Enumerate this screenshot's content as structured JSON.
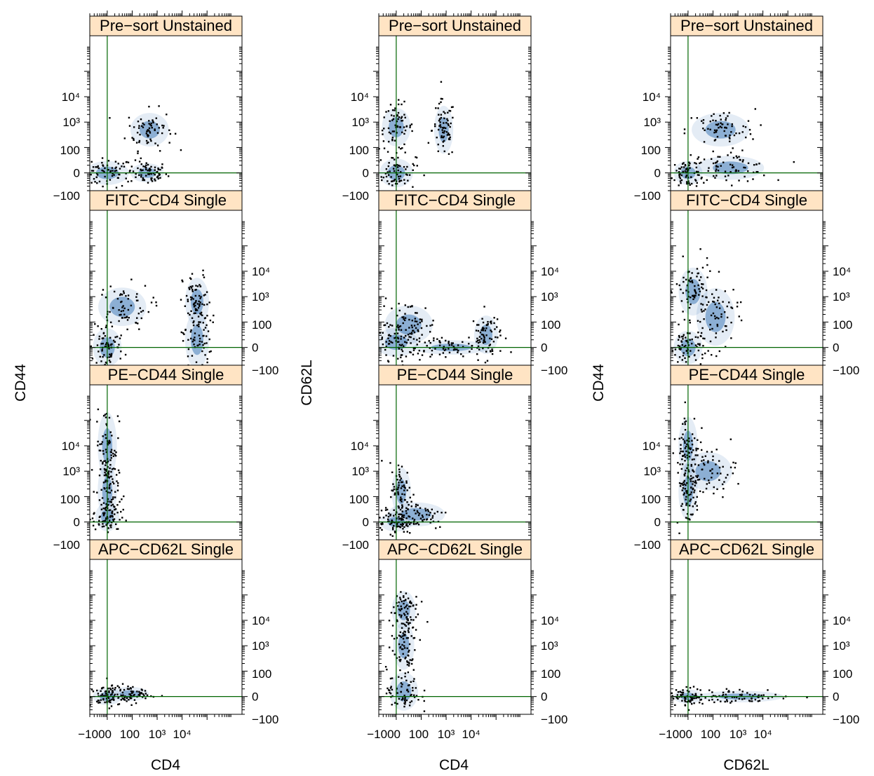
{
  "chart_data": {
    "type": "scatter",
    "description_note": "",
    "columns": [
      {
        "xlabel": "CD4",
        "ylabel": "CD44"
      },
      {
        "xlabel": "CD4",
        "ylabel": "CD62L"
      },
      {
        "xlabel": "CD62L",
        "ylabel": "CD44"
      }
    ],
    "rows": [
      "Pre−sort Unstained",
      "FITC−CD4 Single",
      "PE−CD44 Single",
      "APC−CD62L Single"
    ],
    "tick_labels": [
      "−100",
      "0",
      "100",
      "10³",
      "10⁴"
    ],
    "x_tick_labels": [
      "−1000",
      "100",
      "10³",
      "10⁴"
    ],
    "gate": {
      "x": 0,
      "y": 0
    },
    "colors": {
      "strip": "#FFE4C4",
      "density": "#2166AC",
      "gate_line": "#006400",
      "points": "#000000"
    },
    "panels": [
      [
        {
          "clusters": [
            {
              "x": 0,
              "y": 0,
              "sx": 0.45,
              "sy": 0.25
            },
            {
              "x": 1.6,
              "y": 0,
              "sx": 0.35,
              "sy": 0.2
            },
            {
              "x": 1.7,
              "y": 1.7,
              "sx": 0.4,
              "sy": 0.35
            }
          ]
        },
        {
          "clusters": [
            {
              "x": 0,
              "y": 0,
              "sx": 0.35,
              "sy": 0.3
            },
            {
              "x": 0,
              "y": 1.8,
              "sx": 0.3,
              "sy": 0.4
            },
            {
              "x": 1.9,
              "y": 1.7,
              "sx": 0.2,
              "sy": 0.5
            }
          ]
        },
        {
          "clusters": [
            {
              "x": 0,
              "y": 0,
              "sx": 0.3,
              "sy": 0.25
            },
            {
              "x": 1.7,
              "y": 0.2,
              "sx": 0.7,
              "sy": 0.25
            },
            {
              "x": 1.3,
              "y": 1.7,
              "sx": 0.6,
              "sy": 0.35
            }
          ]
        }
      ],
      [
        {
          "clusters": [
            {
              "x": 0,
              "y": 0,
              "sx": 0.3,
              "sy": 0.4
            },
            {
              "x": 0.6,
              "y": 1.6,
              "sx": 0.5,
              "sy": 0.4
            },
            {
              "x": 3.6,
              "y": 0.3,
              "sx": 0.25,
              "sy": 0.6
            },
            {
              "x": 3.6,
              "y": 1.8,
              "sx": 0.25,
              "sy": 0.5
            }
          ]
        },
        {
          "clusters": [
            {
              "x": 0,
              "y": 0.2,
              "sx": 0.45,
              "sy": 0.3
            },
            {
              "x": 0.5,
              "y": 0.9,
              "sx": 0.5,
              "sy": 0.4
            },
            {
              "x": 2.2,
              "y": 0,
              "sx": 0.8,
              "sy": 0.15
            },
            {
              "x": 3.6,
              "y": 0.5,
              "sx": 0.25,
              "sy": 0.4
            }
          ]
        },
        {
          "clusters": [
            {
              "x": 0,
              "y": 0,
              "sx": 0.3,
              "sy": 0.35
            },
            {
              "x": 0.2,
              "y": 2.2,
              "sx": 0.3,
              "sy": 0.5
            },
            {
              "x": 1.1,
              "y": 1.2,
              "sx": 0.4,
              "sy": 0.6
            }
          ]
        }
      ],
      [
        {
          "clusters": [
            {
              "x": 0,
              "y": 3.0,
              "sx": 0.2,
              "sy": 0.7
            },
            {
              "x": 0,
              "y": 1.2,
              "sx": 0.2,
              "sy": 0.6
            },
            {
              "x": 0,
              "y": 0.2,
              "sx": 0.25,
              "sy": 0.3
            }
          ]
        },
        {
          "clusters": [
            {
              "x": 0,
              "y": 0,
              "sx": 0.35,
              "sy": 0.2
            },
            {
              "x": 0.8,
              "y": 0.3,
              "sx": 0.6,
              "sy": 0.25
            },
            {
              "x": 0.2,
              "y": 1.2,
              "sx": 0.2,
              "sy": 0.5
            }
          ]
        },
        {
          "clusters": [
            {
              "x": 0,
              "y": 3.0,
              "sx": 0.2,
              "sy": 0.6
            },
            {
              "x": 0,
              "y": 1.2,
              "sx": 0.2,
              "sy": 0.6
            },
            {
              "x": 0.8,
              "y": 2.0,
              "sx": 0.5,
              "sy": 0.4
            }
          ]
        }
      ],
      [
        {
          "clusters": [
            {
              "x": 0,
              "y": 0,
              "sx": 0.3,
              "sy": 0.18
            },
            {
              "x": 0.9,
              "y": 0.1,
              "sx": 0.4,
              "sy": 0.15
            }
          ]
        },
        {
          "clusters": [
            {
              "x": 0.3,
              "y": 3.4,
              "sx": 0.25,
              "sy": 0.4
            },
            {
              "x": 0.3,
              "y": 2.0,
              "sx": 0.22,
              "sy": 0.5
            },
            {
              "x": 0.3,
              "y": 0.2,
              "sx": 0.3,
              "sy": 0.4
            }
          ]
        },
        {
          "clusters": [
            {
              "x": 0,
              "y": 0,
              "sx": 0.3,
              "sy": 0.15
            },
            {
              "x": 2.1,
              "y": 0,
              "sx": 0.9,
              "sy": 0.12
            }
          ]
        }
      ]
    ],
    "xlim": [
      -0.7,
      5.4
    ],
    "ylim": [
      -0.7,
      5.4
    ]
  }
}
